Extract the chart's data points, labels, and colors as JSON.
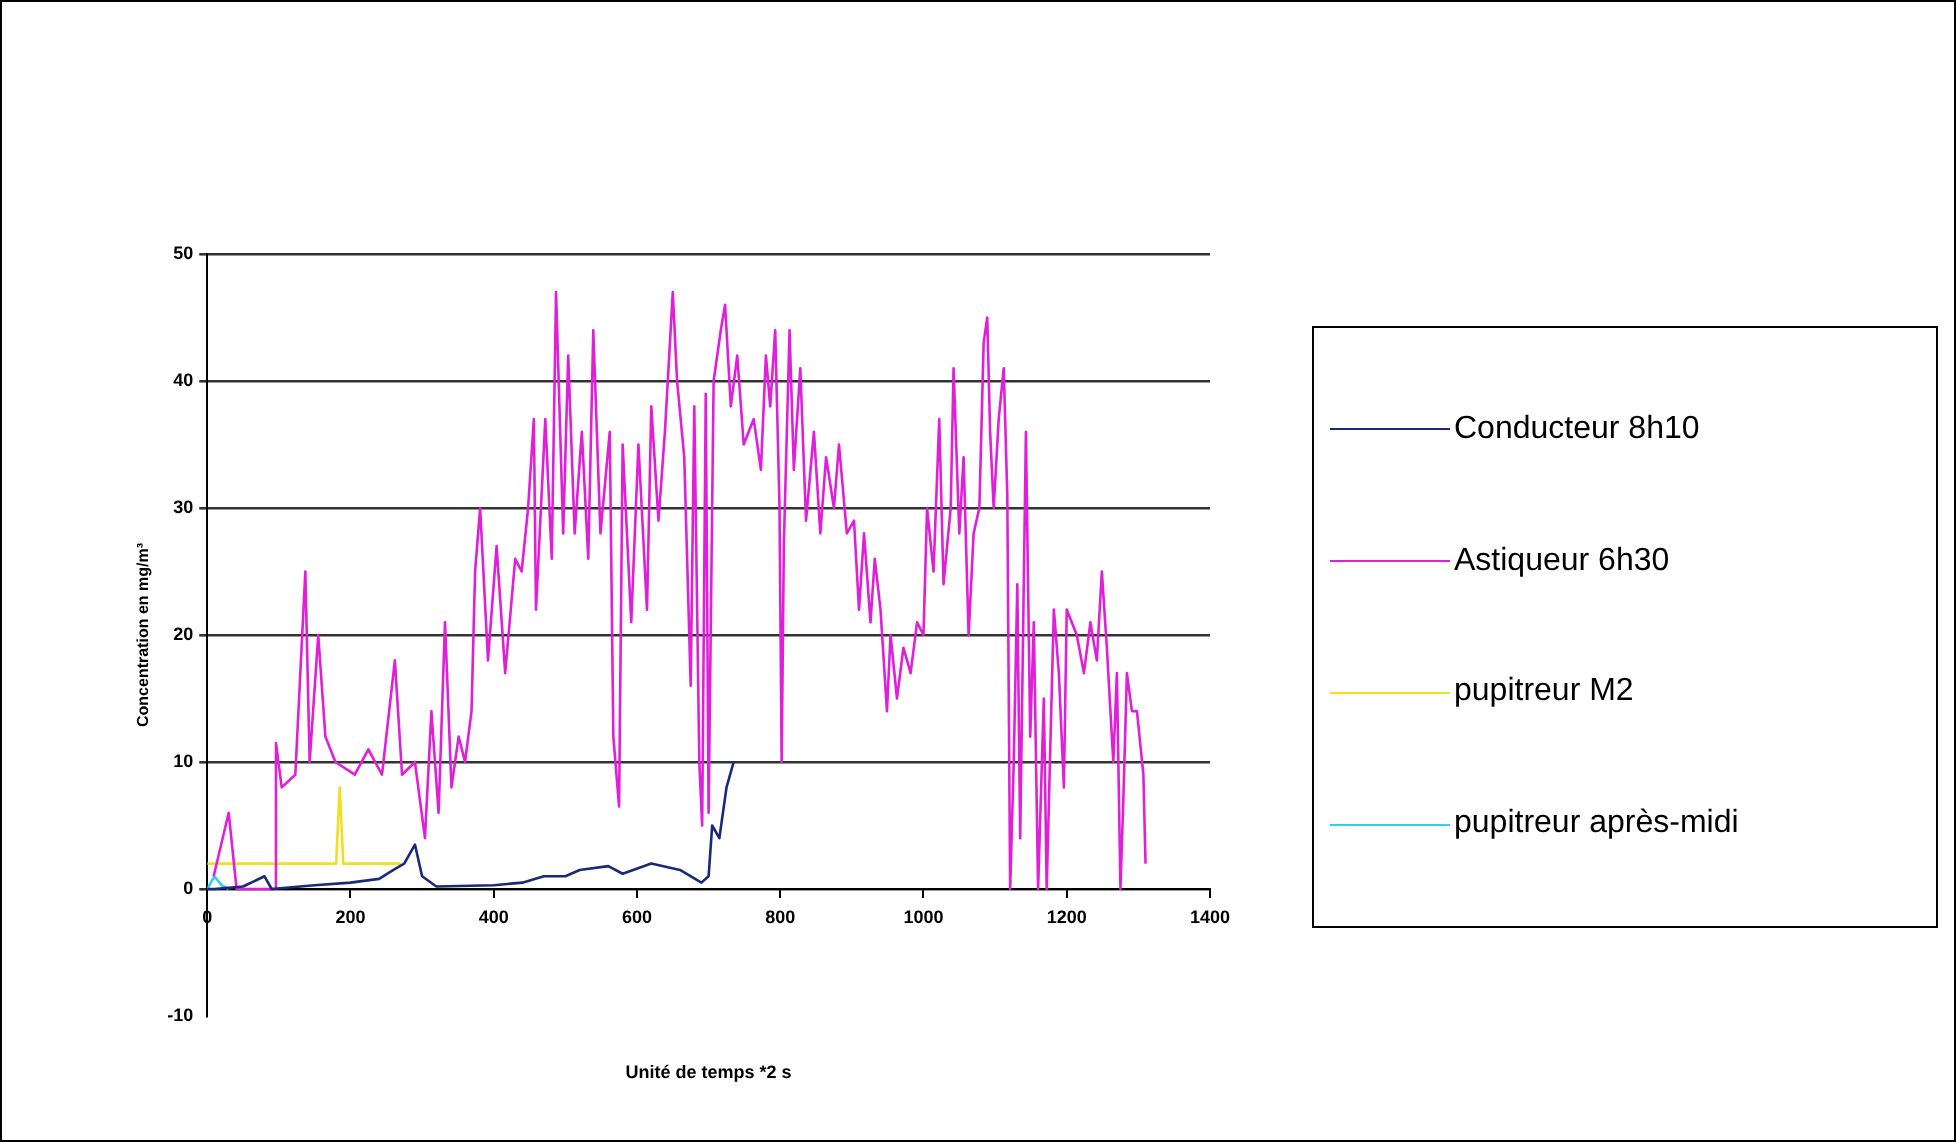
{
  "chart_data": {
    "type": "line",
    "xlabel": "Unité de temps *2 s",
    "ylabel": "Concentration en mg/m³",
    "xlim": [
      0,
      1400
    ],
    "xticks": [
      0,
      200,
      400,
      600,
      800,
      1000,
      1200,
      1400
    ],
    "ylim": [
      -10,
      50
    ],
    "yticks": [
      -10,
      0,
      10,
      20,
      30,
      40,
      50
    ],
    "grid": "y",
    "legend": "right",
    "marker": "none",
    "line_style": "solid",
    "series": [
      {
        "name": "Conducteur 8h10",
        "color": "#1a2a78",
        "x": [
          0,
          10,
          50,
          80,
          90,
          150,
          200,
          240,
          260,
          275,
          290,
          300,
          320,
          400,
          440,
          470,
          500,
          520,
          560,
          580,
          620,
          660,
          690,
          700,
          705,
          715,
          725,
          735
        ],
        "values": [
          0,
          0,
          0.2,
          1,
          0,
          0.3,
          0.5,
          0.8,
          1.5,
          2,
          3.5,
          1,
          0.2,
          0.3,
          0.5,
          1,
          1,
          1.5,
          1.8,
          1.2,
          2,
          1.5,
          0.5,
          1,
          5,
          4,
          8,
          10
        ]
      },
      {
        "name": "Astiqueur 6h30",
        "color": "#e020d8",
        "x": [
          9,
          30,
          41,
          95,
          96,
          104,
          123,
          137,
          143,
          155,
          165,
          179,
          206,
          225,
          244,
          262,
          272,
          290,
          304,
          313,
          323,
          332,
          341,
          351,
          360,
          369,
          374,
          381,
          392,
          404,
          416,
          430,
          439,
          448,
          456,
          459,
          472,
          481,
          487,
          497,
          504,
          513,
          523,
          532,
          539,
          549,
          562,
          567,
          575,
          580,
          592,
          602,
          614,
          620,
          630,
          639,
          645,
          650,
          656,
          666,
          675,
          680,
          687,
          691,
          696,
          700,
          707,
          717,
          723,
          731,
          740,
          749,
          763,
          773,
          780,
          786,
          793,
          799,
          802,
          805,
          813,
          819,
          828,
          836,
          847,
          856,
          864,
          875,
          882,
          893,
          903,
          910,
          917,
          926,
          932,
          940,
          949,
          954,
          963,
          972,
          982,
          991,
          1000,
          1005,
          1014,
          1022,
          1028,
          1038,
          1042,
          1050,
          1056,
          1063,
          1070,
          1078,
          1084,
          1089,
          1093,
          1098,
          1105,
          1112,
          1117,
          1121,
          1126,
          1131,
          1135,
          1143,
          1149,
          1154,
          1160,
          1168,
          1172,
          1182,
          1189,
          1196,
          1200,
          1214,
          1224,
          1233,
          1242,
          1249,
          1256,
          1265,
          1270,
          1275,
          1279,
          1284,
          1291,
          1298,
          1307,
          1310
        ],
        "values": [
          1,
          6,
          0,
          0,
          11.5,
          8,
          9,
          25,
          10,
          20,
          12,
          10,
          9,
          11,
          9,
          18,
          9,
          10,
          4,
          14,
          6,
          21,
          8,
          12,
          10,
          14,
          25,
          30,
          18,
          27,
          17,
          26,
          25,
          30,
          37,
          22,
          37,
          26,
          47,
          28,
          42,
          28,
          36,
          26,
          44,
          28,
          36,
          12,
          6.5,
          35,
          21,
          35,
          22,
          38,
          29,
          36,
          42,
          47,
          40,
          34,
          16,
          38,
          10,
          5,
          39,
          6,
          40,
          44,
          46,
          38,
          42,
          35,
          37,
          33,
          42,
          38,
          44,
          30,
          10,
          27,
          44,
          33,
          41,
          29,
          36,
          28,
          34,
          30,
          35,
          28,
          29,
          22,
          28,
          21,
          26,
          22,
          14,
          20,
          15,
          19,
          17,
          21,
          20,
          30,
          25,
          37,
          24,
          30,
          41,
          28,
          34,
          20,
          28,
          30,
          43,
          45,
          36,
          30,
          37,
          41,
          31,
          0,
          10,
          24,
          4,
          36,
          12,
          21,
          0,
          15,
          0,
          22,
          17,
          8,
          22,
          20,
          17,
          21,
          18,
          25,
          19,
          10,
          17,
          0,
          7,
          17,
          14,
          14,
          9,
          2
        ]
      },
      {
        "name": "pupitreur M2",
        "color": "#f0e020",
        "x": [
          0,
          180,
          185,
          190,
          270
        ],
        "values": [
          2,
          2,
          8,
          2,
          2
        ]
      },
      {
        "name": "pupitreur après-midi",
        "color": "#30d0f0",
        "x": [
          0,
          10,
          20,
          30
        ],
        "values": [
          0,
          1,
          0.3,
          0
        ]
      }
    ]
  }
}
